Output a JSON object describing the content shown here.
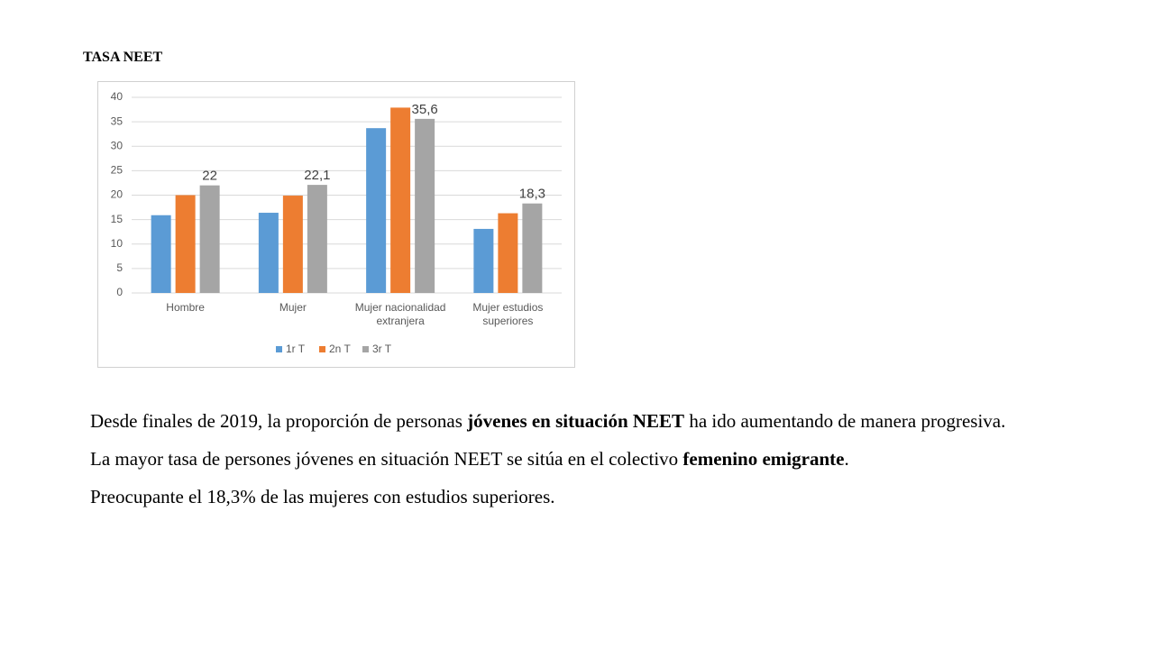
{
  "title": "TASA NEET",
  "chart_data": {
    "type": "bar",
    "categories": [
      "Hombre",
      "Mujer",
      "Mujer nacionalidad extranjera",
      "Mujer estudios superiores"
    ],
    "series": [
      {
        "name": "1r T",
        "color": "#5b9bd5",
        "values": [
          15.9,
          16.4,
          33.7,
          13.1
        ]
      },
      {
        "name": "2n T",
        "color": "#ed7d31",
        "values": [
          20,
          19.9,
          37.9,
          16.3
        ]
      },
      {
        "name": "3r T",
        "color": "#a5a5a5",
        "values": [
          22,
          22.1,
          35.6,
          18.3
        ],
        "value_labels": [
          "22",
          "22,1",
          "35,6",
          "18,3"
        ]
      }
    ],
    "ylim": [
      0,
      40
    ],
    "yticks": [
      0,
      5,
      10,
      15,
      20,
      25,
      30,
      35,
      40
    ],
    "grid": true,
    "legend": "bottom"
  },
  "paragraphs": [
    [
      "Desde finales de 2019, la proporción de personas ",
      "jóvenes en situación NEET",
      " ha ido aumentando de manera progresiva."
    ],
    [
      "La mayor tasa de persones jóvenes en situación NEET se sitúa en el colectivo ",
      "femenino emigrante",
      "."
    ],
    [
      "Preocupante el 18,3% de las mujeres con estudios superiores."
    ]
  ]
}
